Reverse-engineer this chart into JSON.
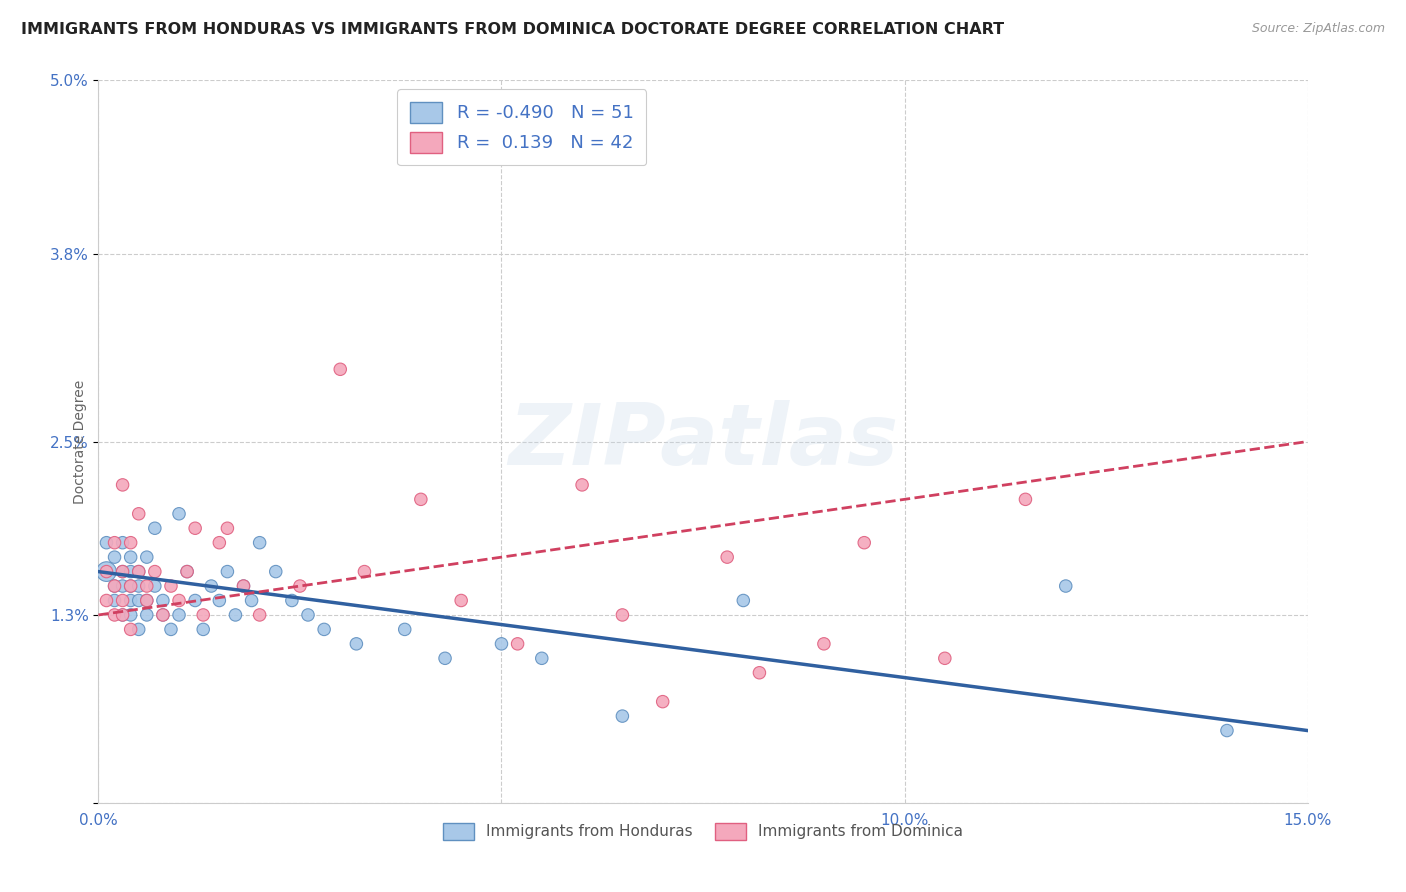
{
  "title": "IMMIGRANTS FROM HONDURAS VS IMMIGRANTS FROM DOMINICA DOCTORATE DEGREE CORRELATION CHART",
  "source": "Source: ZipAtlas.com",
  "ylabel": "Doctorate Degree",
  "xlabel": "",
  "xmin": 0.0,
  "xmax": 0.15,
  "ymin": 0.0,
  "ymax": 0.05,
  "yticks": [
    0.0,
    0.013,
    0.025,
    0.038,
    0.05
  ],
  "ytick_labels": [
    "",
    "1.3%",
    "2.5%",
    "3.8%",
    "5.0%"
  ],
  "xticks": [
    0.0,
    0.05,
    0.1,
    0.15
  ],
  "xtick_labels": [
    "0.0%",
    "",
    "10.0%",
    "15.0%"
  ],
  "honduras_color": "#A8C8E8",
  "dominica_color": "#F4A8BC",
  "honduras_edge_color": "#6090C0",
  "dominica_edge_color": "#E06080",
  "honduras_line_color": "#3060A0",
  "dominica_line_color": "#D04060",
  "honduras_R": -0.49,
  "honduras_N": 51,
  "dominica_R": 0.139,
  "dominica_N": 42,
  "watermark": "ZIPatlas",
  "background_color": "#FFFFFF",
  "grid_color": "#CCCCCC",
  "axis_label_color": "#4472C4",
  "title_fontsize": 11.5,
  "axis_fontsize": 11,
  "legend_fontsize": 13,
  "honduras_line_start_y": 0.016,
  "honduras_line_end_y": 0.005,
  "dominica_line_start_y": 0.013,
  "dominica_line_end_y": 0.025,
  "honduras_x": [
    0.001,
    0.001,
    0.002,
    0.002,
    0.002,
    0.003,
    0.003,
    0.003,
    0.003,
    0.004,
    0.004,
    0.004,
    0.004,
    0.004,
    0.005,
    0.005,
    0.005,
    0.005,
    0.006,
    0.006,
    0.006,
    0.007,
    0.007,
    0.008,
    0.008,
    0.009,
    0.01,
    0.01,
    0.011,
    0.012,
    0.013,
    0.014,
    0.015,
    0.016,
    0.017,
    0.018,
    0.019,
    0.02,
    0.022,
    0.024,
    0.026,
    0.028,
    0.032,
    0.038,
    0.043,
    0.05,
    0.055,
    0.065,
    0.08,
    0.12,
    0.14
  ],
  "honduras_y": [
    0.016,
    0.018,
    0.015,
    0.017,
    0.014,
    0.016,
    0.018,
    0.013,
    0.015,
    0.016,
    0.017,
    0.014,
    0.015,
    0.013,
    0.016,
    0.014,
    0.012,
    0.015,
    0.017,
    0.014,
    0.013,
    0.019,
    0.015,
    0.014,
    0.013,
    0.012,
    0.02,
    0.013,
    0.016,
    0.014,
    0.012,
    0.015,
    0.014,
    0.016,
    0.013,
    0.015,
    0.014,
    0.018,
    0.016,
    0.014,
    0.013,
    0.012,
    0.011,
    0.012,
    0.01,
    0.011,
    0.01,
    0.006,
    0.014,
    0.015,
    0.005
  ],
  "honduras_sizes": [
    200,
    80,
    80,
    80,
    80,
    80,
    80,
    80,
    80,
    80,
    80,
    80,
    80,
    80,
    80,
    80,
    80,
    80,
    80,
    80,
    80,
    80,
    80,
    80,
    80,
    80,
    80,
    80,
    80,
    80,
    80,
    80,
    80,
    80,
    80,
    80,
    80,
    80,
    80,
    80,
    80,
    80,
    80,
    80,
    80,
    80,
    80,
    80,
    80,
    80,
    80
  ],
  "dominica_x": [
    0.001,
    0.001,
    0.002,
    0.002,
    0.002,
    0.003,
    0.003,
    0.003,
    0.003,
    0.004,
    0.004,
    0.004,
    0.005,
    0.005,
    0.006,
    0.006,
    0.007,
    0.008,
    0.009,
    0.01,
    0.011,
    0.012,
    0.013,
    0.015,
    0.016,
    0.018,
    0.02,
    0.025,
    0.03,
    0.033,
    0.04,
    0.045,
    0.052,
    0.06,
    0.065,
    0.07,
    0.078,
    0.082,
    0.09,
    0.095,
    0.105,
    0.115
  ],
  "dominica_y": [
    0.014,
    0.016,
    0.018,
    0.015,
    0.013,
    0.022,
    0.016,
    0.014,
    0.013,
    0.018,
    0.015,
    0.012,
    0.02,
    0.016,
    0.015,
    0.014,
    0.016,
    0.013,
    0.015,
    0.014,
    0.016,
    0.019,
    0.013,
    0.018,
    0.019,
    0.015,
    0.013,
    0.015,
    0.03,
    0.016,
    0.021,
    0.014,
    0.011,
    0.022,
    0.013,
    0.007,
    0.017,
    0.009,
    0.011,
    0.018,
    0.01,
    0.021
  ],
  "dominica_sizes": [
    80,
    80,
    80,
    80,
    80,
    80,
    80,
    80,
    80,
    80,
    80,
    80,
    80,
    80,
    80,
    80,
    80,
    80,
    80,
    80,
    80,
    80,
    80,
    80,
    80,
    80,
    80,
    80,
    80,
    80,
    80,
    80,
    80,
    80,
    80,
    80,
    80,
    80,
    80,
    80,
    80,
    80
  ]
}
